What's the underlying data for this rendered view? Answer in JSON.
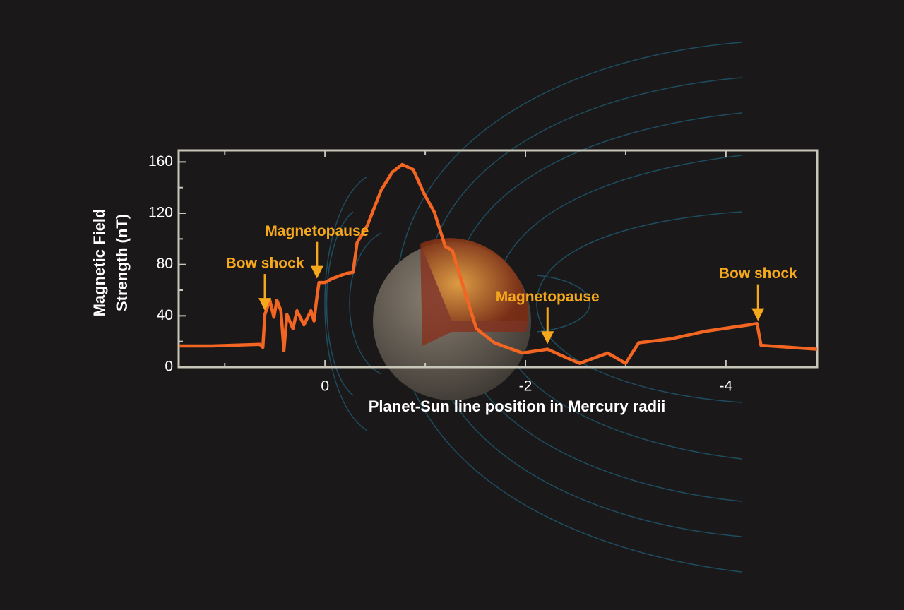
{
  "chart_data": {
    "type": "line",
    "ylabel": [
      "Magnetic Field",
      "Strength (nT)"
    ],
    "xlabel": "Planet-Sun line position in Mercury radii",
    "xlim": [
      1.46,
      -4.91
    ],
    "xticks": [
      0,
      -2,
      -4
    ],
    "xminor": [
      1,
      -1,
      -3
    ],
    "ylim": [
      0,
      169
    ],
    "yticks": [
      0,
      40,
      80,
      120,
      160
    ],
    "yminor": [
      20,
      60,
      100,
      140
    ],
    "series": [
      {
        "color": "#f26522",
        "x": [
          1.46,
          1.13,
          0.65,
          0.62,
          0.6,
          0.55,
          0.51,
          0.48,
          0.44,
          0.41,
          0.38,
          0.32,
          0.28,
          0.21,
          0.14,
          0.11,
          0.08,
          0.06,
          0,
          -0.07,
          -0.21,
          -0.28,
          -0.32,
          -0.42,
          -0.56,
          -0.67,
          -0.77,
          -0.88,
          -0.99,
          -1.09,
          -1.2,
          -1.27,
          -1.41,
          -1.51,
          -1.69,
          -1.97,
          -2.22,
          -2.39,
          -2.54,
          -2.82,
          -3.0,
          -3.13,
          -3.45,
          -3.8,
          -4.23,
          -4.31,
          -4.35,
          -4.91
        ],
        "values": [
          16.5,
          16.5,
          17.7,
          15.4,
          41,
          52,
          39,
          52,
          44,
          13,
          41,
          30,
          44,
          33,
          44,
          36,
          55,
          66,
          66,
          69,
          73,
          74,
          97,
          110,
          138,
          152,
          158,
          154,
          135,
          121,
          94,
          91,
          55,
          30,
          19,
          11,
          14,
          8,
          3,
          11,
          3,
          19,
          22,
          28,
          33,
          34,
          17,
          14
        ]
      }
    ],
    "annotations": [
      {
        "text": "Bow shock",
        "x": 0.6,
        "y": 44
      },
      {
        "text": "Magnetopause",
        "x": 0.08,
        "y": 69
      },
      {
        "text": "Magnetopause",
        "x": -2.22,
        "y": 18
      },
      {
        "text": "Bow shock",
        "x": -4.32,
        "y": 36
      }
    ]
  }
}
